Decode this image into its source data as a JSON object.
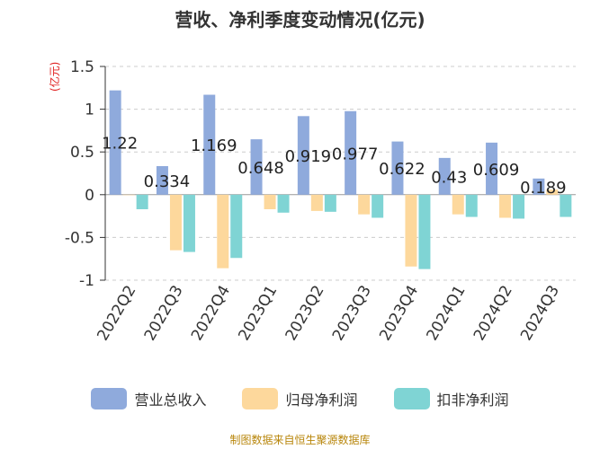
{
  "chart_data": {
    "type": "bar",
    "title": "营收、净利季度变动情况(亿元)",
    "ylabel": "(亿元)",
    "ylim": [
      -1,
      1.5
    ],
    "yticks": [
      "1.5",
      "1",
      "0.5",
      "0",
      "-0.5",
      "-1"
    ],
    "yticks_values": [
      1.5,
      1,
      0.5,
      0,
      -0.5,
      -1
    ],
    "grid": true,
    "legend_position": "bottom",
    "categories": [
      "2022Q2",
      "2022Q3",
      "2022Q4",
      "2023Q1",
      "2023Q2",
      "2023Q3",
      "2023Q4",
      "2024Q1",
      "2024Q2",
      "2024Q3"
    ],
    "series": [
      {
        "name": "营业总收入",
        "color": "#8faadc",
        "values": [
          1.22,
          0.334,
          1.169,
          0.648,
          0.919,
          0.977,
          0.622,
          0.43,
          0.609,
          0.189
        ],
        "labels": [
          "1.22",
          "0.334",
          "1.169",
          "0.648",
          "0.919",
          "0.977",
          "0.622",
          "0.43",
          "0.609",
          "0.189"
        ]
      },
      {
        "name": "归母净利润",
        "color": "#fdd89c",
        "values": [
          0.0,
          -0.65,
          -0.86,
          -0.17,
          -0.19,
          -0.23,
          -0.84,
          -0.23,
          -0.27,
          0.06
        ]
      },
      {
        "name": "扣非净利润",
        "color": "#7fd4d4",
        "values": [
          -0.17,
          -0.67,
          -0.74,
          -0.21,
          -0.2,
          -0.27,
          -0.87,
          -0.26,
          -0.28,
          -0.26
        ]
      }
    ],
    "source": "制图数据来自恒生聚源数据库"
  }
}
